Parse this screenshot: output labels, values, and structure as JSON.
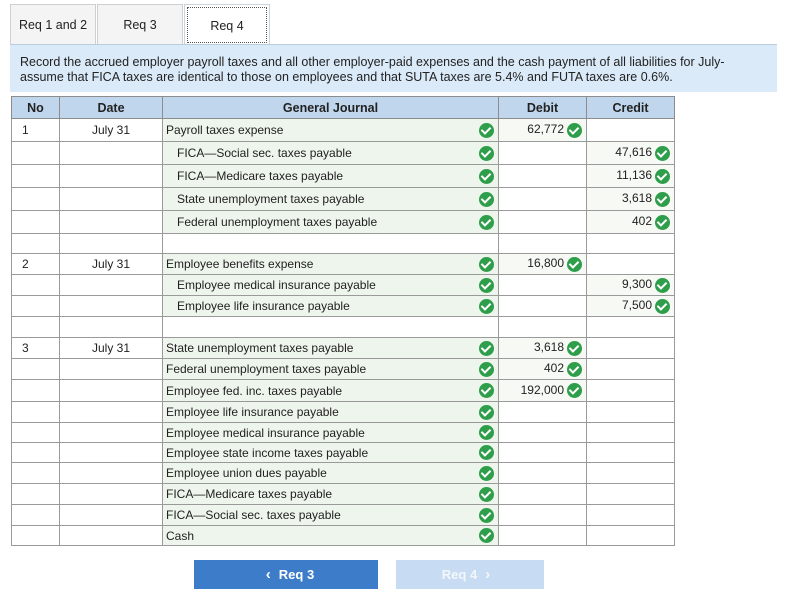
{
  "tabs": [
    "Req 1 and 2",
    "Req 3",
    "Req 4"
  ],
  "active_tab": 2,
  "instructions": "Record the accrued employer payroll taxes and all other employer-paid expenses and the cash payment of all liabilities for July-assume that FICA taxes are identical to those on employees and that SUTA taxes are 5.4% and FUTA taxes are 0.6%.",
  "table": {
    "headers": {
      "no": "No",
      "date": "Date",
      "journal": "General Journal",
      "debit": "Debit",
      "credit": "Credit"
    },
    "rows": [
      {
        "no": "1",
        "date": "July 31",
        "account": "Payroll taxes expense",
        "indent": false,
        "debit": "62,772",
        "credit": "",
        "check": true,
        "filled": true,
        "h": 23
      },
      {
        "no": "",
        "date": "",
        "account": "FICA—Social sec. taxes payable",
        "indent": true,
        "debit": "",
        "credit": "47,616",
        "check": true,
        "filled": true,
        "h": 23
      },
      {
        "no": "",
        "date": "",
        "account": "FICA—Medicare taxes payable",
        "indent": true,
        "debit": "",
        "credit": "11,136",
        "check": true,
        "filled": true,
        "h": 23
      },
      {
        "no": "",
        "date": "",
        "account": "State unemployment taxes payable",
        "indent": true,
        "debit": "",
        "credit": "3,618",
        "check": true,
        "filled": true,
        "h": 23
      },
      {
        "no": "",
        "date": "",
        "account": "Federal unemployment taxes payable",
        "indent": true,
        "debit": "",
        "credit": "402",
        "check": true,
        "filled": true,
        "h": 23
      },
      {
        "no": "",
        "date": "",
        "account": "",
        "indent": false,
        "debit": "",
        "credit": "",
        "check": false,
        "filled": false,
        "h": 20
      },
      {
        "no": "2",
        "date": "July 31",
        "account": "Employee benefits expense",
        "indent": false,
        "debit": "16,800",
        "credit": "",
        "check": true,
        "filled": true,
        "h": 21
      },
      {
        "no": "",
        "date": "",
        "account": "Employee medical insurance payable",
        "indent": true,
        "debit": "",
        "credit": "9,300",
        "check": true,
        "filled": true,
        "h": 21
      },
      {
        "no": "",
        "date": "",
        "account": "Employee life insurance payable",
        "indent": true,
        "debit": "",
        "credit": "7,500",
        "check": true,
        "filled": true,
        "h": 21
      },
      {
        "no": "",
        "date": "",
        "account": "",
        "indent": false,
        "debit": "",
        "credit": "",
        "check": false,
        "filled": false,
        "h": 21
      },
      {
        "no": "3",
        "date": "July 31",
        "account": "State unemployment taxes payable",
        "indent": false,
        "debit": "3,618",
        "credit": "",
        "check": true,
        "filled": true,
        "h": 21
      },
      {
        "no": "",
        "date": "",
        "account": "Federal unemployment taxes payable",
        "indent": false,
        "debit": "402",
        "credit": "",
        "check": true,
        "filled": true,
        "h": 21
      },
      {
        "no": "",
        "date": "",
        "account": "Employee fed. inc. taxes payable",
        "indent": false,
        "debit": "192,000",
        "credit": "",
        "check": true,
        "filled": true,
        "h": 22
      },
      {
        "no": "",
        "date": "",
        "account": "Employee life insurance payable",
        "indent": false,
        "debit": "",
        "credit": "",
        "check": true,
        "filled": true,
        "h": 21
      },
      {
        "no": "",
        "date": "",
        "account": "Employee medical insurance payable",
        "indent": false,
        "debit": "",
        "credit": "",
        "check": true,
        "filled": true,
        "h": 20
      },
      {
        "no": "",
        "date": "",
        "account": "Employee state income taxes payable",
        "indent": false,
        "debit": "",
        "credit": "",
        "check": true,
        "filled": true,
        "h": 20
      },
      {
        "no": "",
        "date": "",
        "account": "Employee union dues payable",
        "indent": false,
        "debit": "",
        "credit": "",
        "check": true,
        "filled": true,
        "h": 21
      },
      {
        "no": "",
        "date": "",
        "account": "FICA—Medicare taxes payable",
        "indent": false,
        "debit": "",
        "credit": "",
        "check": true,
        "filled": true,
        "h": 21
      },
      {
        "no": "",
        "date": "",
        "account": "FICA—Social sec. taxes payable",
        "indent": false,
        "debit": "",
        "credit": "",
        "check": true,
        "filled": true,
        "h": 21
      },
      {
        "no": "",
        "date": "",
        "account": "Cash",
        "indent": false,
        "debit": "",
        "credit": "",
        "check": true,
        "filled": true,
        "h": 20
      }
    ]
  },
  "buttons": {
    "prev": "Req 3",
    "next": "Req 4"
  },
  "colors": {
    "header_bg": "#bfd6ec",
    "instr_bg": "#dbeaf8",
    "check": "#2e9e4b",
    "prev_btn": "#3d7cc9",
    "next_btn": "#c7dcf3"
  }
}
